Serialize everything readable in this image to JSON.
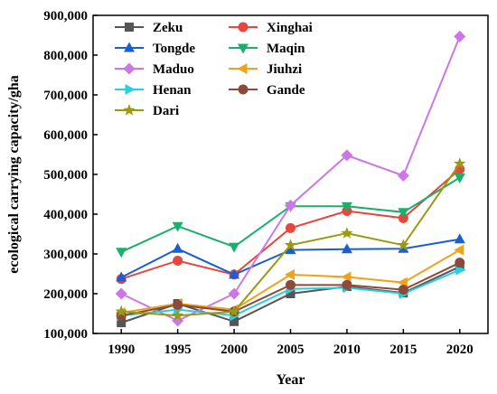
{
  "chart_data": {
    "type": "line",
    "title": "",
    "xlabel": "Year",
    "ylabel": "ecological carrying capacity/gha",
    "x": [
      1990,
      1995,
      2000,
      2005,
      2010,
      2015,
      2020
    ],
    "x_tick_labels": [
      "1990",
      "1995",
      "2000",
      "2005",
      "2010",
      "2015",
      "2020"
    ],
    "ylim": [
      100000,
      900000
    ],
    "y_ticks": [
      100000,
      200000,
      300000,
      400000,
      500000,
      600000,
      700000,
      800000,
      900000
    ],
    "y_tick_labels": [
      "100,000",
      "200,000",
      "300,000",
      "400,000",
      "500,000",
      "600,000",
      "700,000",
      "800,000",
      "900,000"
    ],
    "grid": false,
    "legend_placement": "top-left",
    "series": [
      {
        "name": "Zeku",
        "color": "#555555",
        "marker": "square",
        "values": [
          127000,
          175000,
          130000,
          200000,
          218000,
          202000,
          268000
        ]
      },
      {
        "name": "Xinghai",
        "color": "#e8463c",
        "marker": "circle",
        "values": [
          237000,
          283000,
          248000,
          365000,
          408000,
          390000,
          513000
        ]
      },
      {
        "name": "Tongde",
        "color": "#1a5fd1",
        "marker": "triangle-up",
        "values": [
          241000,
          313000,
          248000,
          310000,
          312000,
          313000,
          337000
        ]
      },
      {
        "name": "Maqin",
        "color": "#1aaf6b",
        "marker": "triangle-down",
        "values": [
          305000,
          370000,
          318000,
          420000,
          420000,
          405000,
          492000
        ]
      },
      {
        "name": "Maduo",
        "color": "#cc77e6",
        "marker": "diamond",
        "values": [
          200000,
          132000,
          200000,
          422000,
          548000,
          497000,
          847000
        ]
      },
      {
        "name": "Jiuhzi",
        "color": "#f0a21a",
        "marker": "triangle-left",
        "values": [
          152000,
          175000,
          160000,
          248000,
          242000,
          228000,
          310000
        ]
      },
      {
        "name": "Henan",
        "color": "#26d0e0",
        "marker": "triangle-right",
        "values": [
          145000,
          160000,
          145000,
          212000,
          215000,
          200000,
          260000
        ]
      },
      {
        "name": "Gande",
        "color": "#8c4a3c",
        "marker": "circle",
        "values": [
          145000,
          172000,
          155000,
          222000,
          222000,
          210000,
          278000
        ]
      },
      {
        "name": "Dari",
        "color": "#9a9a10",
        "marker": "star",
        "values": [
          155000,
          145000,
          155000,
          322000,
          352000,
          322000,
          527000
        ]
      }
    ]
  }
}
